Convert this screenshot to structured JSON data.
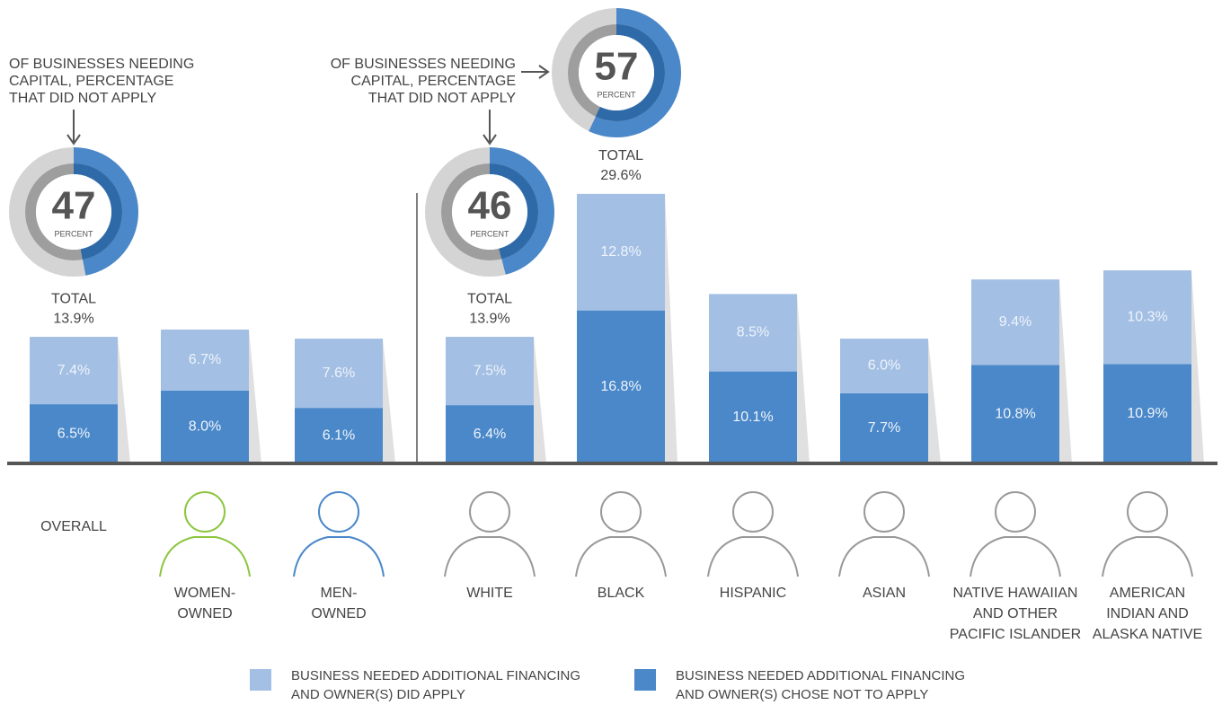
{
  "chart_data": {
    "type": "stacked-bar",
    "categories": [
      [
        "OVERALL"
      ],
      [
        "WOMEN-",
        "OWNED"
      ],
      [
        "MEN-",
        "OWNED"
      ],
      [
        "WHITE"
      ],
      [
        "BLACK"
      ],
      [
        "HISPANIC"
      ],
      [
        "ASIAN"
      ],
      [
        "NATIVE HAWAIIAN",
        "AND OTHER",
        "PACIFIC ISLANDER"
      ],
      [
        "AMERICAN",
        "INDIAN AND",
        "ALASKA NATIVE"
      ]
    ],
    "series": [
      {
        "name": [
          "BUSINESS NEEDED ADDITIONAL FINANCING",
          "AND OWNER(S) DID APPLY"
        ],
        "color": "#a3bfe4",
        "values": [
          7.4,
          6.7,
          7.6,
          7.5,
          12.8,
          8.5,
          6.0,
          9.4,
          10.3
        ],
        "value_labels": [
          "7.4%",
          "6.7%",
          "7.6%",
          "7.5%",
          "12.8%",
          "8.5%",
          "6.0%",
          "9.4%",
          "10.3%"
        ]
      },
      {
        "name": [
          "BUSINESS NEEDED ADDITIONAL FINANCING",
          "AND OWNER(S) CHOSE NOT TO APPLY"
        ],
        "color": "#4a88c9",
        "values": [
          6.5,
          8.0,
          6.1,
          6.4,
          16.8,
          10.1,
          7.7,
          10.8,
          10.9
        ],
        "value_labels": [
          "6.5%",
          "8.0%",
          "6.1%",
          "6.4%",
          "16.8%",
          "10.1%",
          "7.7%",
          "10.8%",
          "10.9%"
        ]
      }
    ],
    "total_title": "TOTAL",
    "totals": [
      13.9,
      null,
      null,
      13.9,
      29.6,
      null,
      null,
      null,
      null
    ],
    "total_labels": [
      "13.9%",
      null,
      null,
      "13.9%",
      "29.6%",
      null,
      null,
      null,
      null
    ],
    "donuts": [
      47,
      null,
      null,
      46,
      57,
      null,
      null,
      null,
      null
    ],
    "donut_unit": "PERCENT",
    "callout": [
      "OF BUSINESSES NEEDING",
      "CAPITAL, PERCENTAGE",
      "THAT DID NOT APPLY"
    ]
  }
}
